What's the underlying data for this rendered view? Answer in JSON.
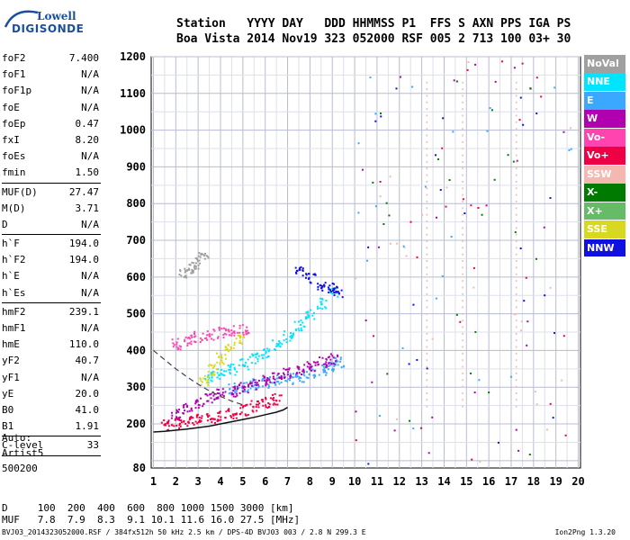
{
  "logo": {
    "top": "Lowell",
    "bottom": "DIGISONDE"
  },
  "header": {
    "line1": "Station   YYYY DAY   DDD HHMMSS P1  FFS S AXN PPS IGA PS",
    "line2": "Boa Vista 2014 Nov19 323 052000 RSF 005 2 713 100 03+ 30"
  },
  "params": [
    {
      "name": "foF2",
      "value": "7.400"
    },
    {
      "name": "foF1",
      "value": "N/A"
    },
    {
      "name": "foF1p",
      "value": "N/A"
    },
    {
      "name": "foE",
      "value": "N/A"
    },
    {
      "name": "foEp",
      "value": "0.47"
    },
    {
      "name": "fxI",
      "value": "8.20"
    },
    {
      "name": "foEs",
      "value": "N/A"
    },
    {
      "name": "fmin",
      "value": "1.50"
    },
    {
      "name": "MUF(D)",
      "value": "27.47",
      "sep": true
    },
    {
      "name": "M(D)",
      "value": "3.71"
    },
    {
      "name": "D",
      "value": "N/A"
    },
    {
      "name": "h`F",
      "value": "194.0",
      "sep": true
    },
    {
      "name": "h`F2",
      "value": "194.0"
    },
    {
      "name": "h`E",
      "value": "N/A"
    },
    {
      "name": "h`Es",
      "value": "N/A"
    },
    {
      "name": "hmF2",
      "value": "239.1",
      "sep": true
    },
    {
      "name": "hmF1",
      "value": "N/A"
    },
    {
      "name": "hmE",
      "value": "110.0"
    },
    {
      "name": "yF2",
      "value": "40.7"
    },
    {
      "name": "yF1",
      "value": "N/A"
    },
    {
      "name": "yE",
      "value": "20.0"
    },
    {
      "name": "B0",
      "value": "41.0"
    },
    {
      "name": "B1",
      "value": "1.91"
    },
    {
      "name": "C-level",
      "value": "33",
      "sep": true
    }
  ],
  "auto": {
    "l1": "Auto:",
    "l2": "Artist5",
    "l3": "500200"
  },
  "legend": [
    {
      "label": "NoVal",
      "color": "#a0a0a0"
    },
    {
      "label": "NNE",
      "color": "#00e5ff"
    },
    {
      "label": "E",
      "color": "#3aa8ff"
    },
    {
      "label": "W",
      "color": "#b000b0"
    },
    {
      "label": "Vo-",
      "color": "#ff44b0"
    },
    {
      "label": "Vo+",
      "color": "#ee0044"
    },
    {
      "label": "SSW",
      "color": "#f4b8b0"
    },
    {
      "label": "X-",
      "color": "#007a00"
    },
    {
      "label": "X+",
      "color": "#66bb66"
    },
    {
      "label": "SSE",
      "color": "#d8d820"
    },
    {
      "label": "NNW",
      "color": "#1010e0"
    }
  ],
  "dmuf": {
    "dline": "D     100  200  400  600  800 1000 1500 3000 [km]",
    "mline": "MUF   7.8  7.9  8.3  9.1 10.1 11.6 16.0 27.5 [MHz]"
  },
  "footer": "BVJ03_2014323052000.RSF / 384fx512h 50 kHz 2.5 km / DPS-4D BVJ03 003 / 2.8 N 299.3 E",
  "version": "Ion2Png 1.3.20",
  "chart_data": {
    "type": "scatter",
    "x_ticks": [
      1,
      2,
      3,
      4,
      5,
      6,
      7,
      8,
      9,
      10,
      11,
      12,
      13,
      14,
      15,
      16,
      17,
      18,
      19,
      20
    ],
    "y_ticks": [
      80,
      200,
      300,
      400,
      500,
      600,
      700,
      800,
      900,
      1000,
      1100,
      1200
    ],
    "xlim": [
      0.9,
      20.1
    ],
    "ylim": [
      80,
      1200
    ],
    "grid": true,
    "curve_solid": {
      "x": [
        1.0,
        1.5,
        2.0,
        2.5,
        3.0,
        3.5,
        4.0,
        4.5,
        5.0,
        5.5,
        6.0,
        6.5,
        6.8,
        7.0
      ],
      "y": [
        178,
        180,
        183,
        186,
        190,
        194,
        200,
        206,
        212,
        218,
        225,
        232,
        238,
        245
      ]
    },
    "curve_dashed": {
      "x": [
        1.0,
        1.5,
        2.0,
        2.5,
        3.0,
        3.5,
        4.0,
        4.5,
        5.0
      ],
      "y": [
        400,
        375,
        350,
        328,
        308,
        290,
        275,
        262,
        252
      ]
    },
    "trace_clusters": [
      {
        "name": "NoVal",
        "x": [
          2.3,
          2.6,
          2.9,
          3.2
        ],
        "y": [
          610,
          625,
          640,
          655
        ]
      },
      {
        "name": "NNE",
        "x": [
          3.5,
          4.0,
          4.5,
          5.0,
          5.5,
          6.0,
          6.5,
          7.0,
          7.5,
          8.0,
          8.5,
          9.0
        ],
        "y": [
          330,
          340,
          350,
          365,
          380,
          395,
          415,
          440,
          470,
          500,
          530,
          560
        ]
      },
      {
        "name": "E",
        "x": [
          4.5,
          5.0,
          5.5,
          6.0,
          6.5,
          7.0,
          7.5,
          8.0,
          8.5,
          9.0,
          9.3
        ],
        "y": [
          300,
          305,
          310,
          315,
          320,
          325,
          330,
          340,
          350,
          360,
          370
        ]
      },
      {
        "name": "W",
        "x": [
          2.0,
          2.5,
          3.0,
          3.5,
          4.0,
          4.5,
          5.0,
          5.5,
          6.0,
          6.5,
          7.0,
          7.5,
          8.0,
          8.5,
          9.0
        ],
        "y": [
          230,
          245,
          260,
          275,
          285,
          290,
          300,
          310,
          320,
          330,
          340,
          350,
          360,
          370,
          380
        ]
      },
      {
        "name": "Vo-",
        "x": [
          2.0,
          2.5,
          3.0,
          3.5,
          4.0,
          4.5,
          5.0
        ],
        "y": [
          420,
          430,
          440,
          445,
          450,
          455,
          460
        ]
      },
      {
        "name": "Vo+",
        "x": [
          1.5,
          2.0,
          2.5,
          3.0,
          3.5,
          4.0,
          4.5,
          5.0,
          5.5,
          6.0,
          6.5
        ],
        "y": [
          200,
          205,
          210,
          215,
          220,
          225,
          232,
          240,
          250,
          260,
          270
        ]
      },
      {
        "name": "SSE",
        "x": [
          3.2,
          3.6,
          4.0,
          4.4,
          4.8
        ],
        "y": [
          320,
          350,
          380,
          410,
          430
        ]
      },
      {
        "name": "NNW",
        "x": [
          7.5,
          8.0,
          8.5,
          9.0,
          9.2
        ],
        "y": [
          620,
          600,
          580,
          570,
          560
        ]
      }
    ]
  }
}
